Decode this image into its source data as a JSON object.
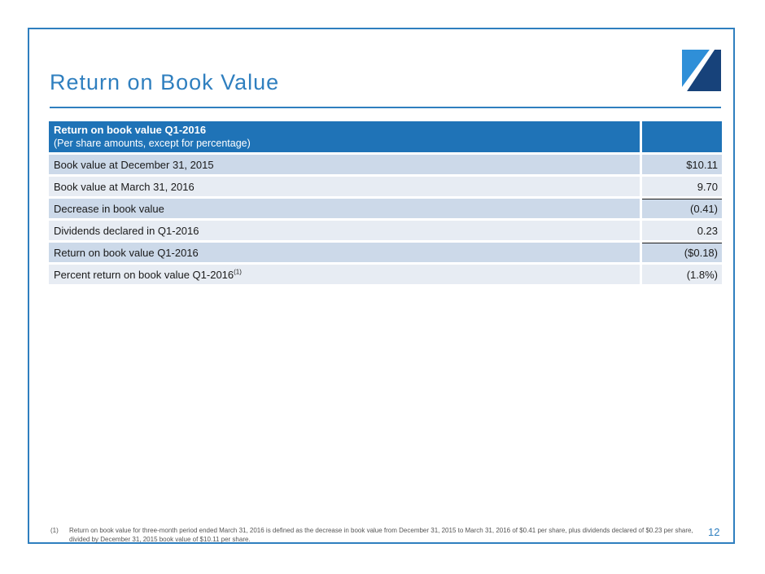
{
  "slide": {
    "title": "Return on Book Value",
    "page_number": "12",
    "logo_icon": "company-logo-icon",
    "colors": {
      "accent": "#2f7fbf",
      "header_fill": "#1f73b7",
      "row_dark": "#ccd9e9",
      "row_light": "#e7ecf3"
    }
  },
  "table": {
    "header": {
      "title": "Return on book value Q1-2016",
      "subtitle": "(Per share amounts, except for percentage)",
      "value_header": ""
    },
    "rows": [
      {
        "label": "Book value at December 31, 2015",
        "value": "$10.11"
      },
      {
        "label": "Book value at March 31, 2016",
        "value": "9.70"
      },
      {
        "label": "Decrease in book value",
        "value": "(0.41)"
      },
      {
        "label": "Dividends declared in Q1-2016",
        "value": "0.23"
      },
      {
        "label": "Return on book value Q1-2016",
        "value": "($0.18)"
      },
      {
        "label": "Percent return on book value Q1-2016",
        "label_superscript": "(1)",
        "value": "(1.8%)"
      }
    ]
  },
  "footnote": {
    "number": "(1)",
    "text": "Return on book value for three-month period ended March 31, 2016 is defined as the decrease in book value from December 31, 2015 to March 31, 2016 of $0.41 per share, plus dividends declared of $0.23 per share, divided by December 31, 2015 book value of $10.11 per share."
  }
}
